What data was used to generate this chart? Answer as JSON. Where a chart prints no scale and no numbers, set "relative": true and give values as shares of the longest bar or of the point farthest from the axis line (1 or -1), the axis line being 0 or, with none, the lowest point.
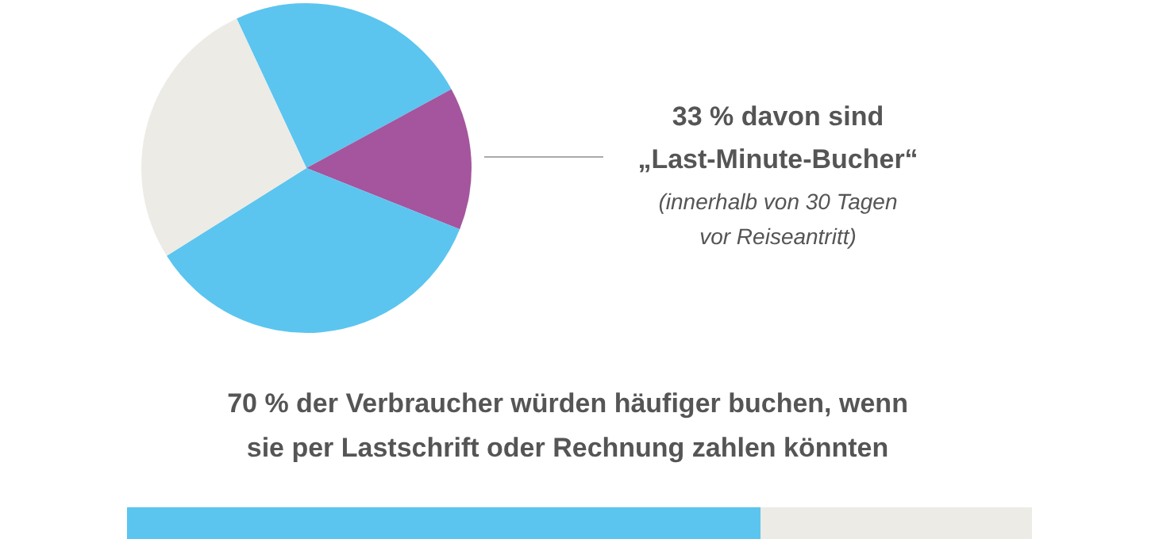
{
  "chart_data": [
    {
      "type": "pie",
      "categories": [
        null,
        null,
        null,
        null
      ],
      "values": [
        24,
        14,
        35,
        27
      ],
      "colors": [
        "#5bc5ef",
        "#a4559e",
        "#5bc5ef",
        "#ecebe6"
      ],
      "annotations": [
        "33 % davon sind",
        "„Last-Minute-Bucher“",
        "(innerhalb von 30 Tagen",
        "vor Reiseantritt)"
      ]
    },
    {
      "type": "bar",
      "orientation": "horizontal",
      "stacked": true,
      "relative": true,
      "categories": [
        null
      ],
      "title": "70 % der Verbraucher würden häufiger buchen, wenn sie per Lastschrift oder Rechnung zahlen könnten",
      "series": [
        {
          "color": "#5bc5ef",
          "values": [
            0.7
          ]
        },
        {
          "color": "#ecebe6",
          "values": [
            0.3
          ]
        }
      ]
    }
  ]
}
